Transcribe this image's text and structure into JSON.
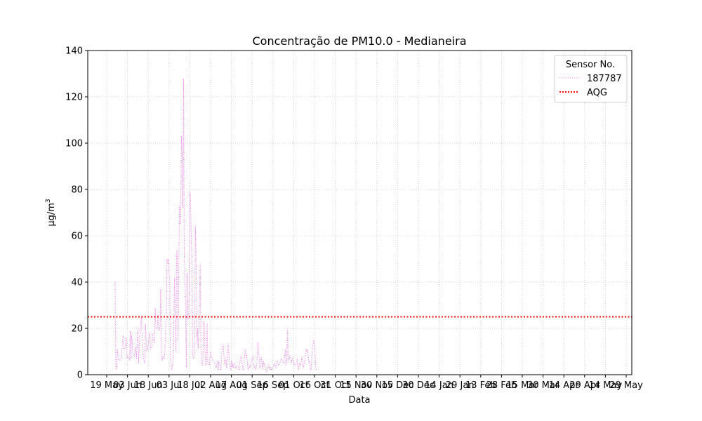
{
  "chart_data": {
    "type": "line",
    "title": "Concentração de PM10.0 - Medianeira",
    "xlabel": "Data",
    "ylabel": "µg/m",
    "ylabel_superscript": "3",
    "ylim": [
      0,
      140
    ],
    "yticks": [
      0,
      20,
      40,
      60,
      80,
      100,
      120,
      140
    ],
    "grid": true,
    "legend": {
      "title": "Sensor No.",
      "placement": "top-right"
    },
    "x_tick_labels": [
      "19 May",
      "03 Jun",
      "18 Jun",
      "03 Jul",
      "18 Jul",
      "02 Aug",
      "17 Aug",
      "01 Sep",
      "16 Sep",
      "01 Oct",
      "16 Oct",
      "31 Oct",
      "15 Nov",
      "30 Nov",
      "15 Dec",
      "30 Dec",
      "14 Jan",
      "29 Jan",
      "13 Feb",
      "28 Feb",
      "15 Mar",
      "30 Mar",
      "14 Apr",
      "29 Apr",
      "14 May",
      "29 May"
    ],
    "x_day_index_of_first_tick": 0,
    "tick_interval_days": 15,
    "series": [
      {
        "name": "187787",
        "color": "#ee82ee",
        "style": "dotted",
        "points": [
          [
            6,
            40
          ],
          [
            6.6,
            3
          ],
          [
            7.2,
            2
          ],
          [
            7.8,
            11
          ],
          [
            8.5,
            7
          ],
          [
            9.5,
            6
          ],
          [
            10.5,
            7
          ],
          [
            11.5,
            15
          ],
          [
            12,
            17
          ],
          [
            12.5,
            11
          ],
          [
            13.5,
            12
          ],
          [
            14,
            16
          ],
          [
            14.5,
            7
          ],
          [
            15.5,
            8
          ],
          [
            16.5,
            6
          ],
          [
            17,
            19
          ],
          [
            17.5,
            7
          ],
          [
            18,
            17
          ],
          [
            19,
            9
          ],
          [
            20,
            8
          ],
          [
            21,
            12
          ],
          [
            21.5,
            7
          ],
          [
            22.5,
            20
          ],
          [
            23,
            5
          ],
          [
            24,
            18
          ],
          [
            25,
            25
          ],
          [
            25.5,
            17
          ],
          [
            26.5,
            7
          ],
          [
            27.5,
            5
          ],
          [
            28,
            22
          ],
          [
            29,
            10
          ],
          [
            30,
            13
          ],
          [
            31,
            18
          ],
          [
            31.5,
            11
          ],
          [
            32.5,
            12
          ],
          [
            33,
            18
          ],
          [
            33.5,
            15
          ],
          [
            34.5,
            14
          ],
          [
            35,
            29
          ],
          [
            35.5,
            20
          ],
          [
            36.5,
            20
          ],
          [
            37,
            26
          ],
          [
            37.5,
            19
          ],
          [
            38.5,
            20
          ],
          [
            39,
            37
          ],
          [
            39.5,
            9
          ],
          [
            40,
            6
          ],
          [
            40.5,
            8
          ],
          [
            41.5,
            7
          ],
          [
            42,
            10
          ],
          [
            43,
            24
          ],
          [
            43.5,
            50
          ],
          [
            44,
            49
          ],
          [
            44.5,
            50
          ],
          [
            45,
            44
          ],
          [
            45.5,
            40
          ],
          [
            46,
            9
          ],
          [
            46.5,
            5
          ],
          [
            47,
            2
          ],
          [
            48,
            6
          ],
          [
            49,
            42
          ],
          [
            49.5,
            24
          ],
          [
            50,
            10
          ],
          [
            50.5,
            54
          ],
          [
            51,
            51
          ],
          [
            51.5,
            15
          ],
          [
            52,
            43
          ],
          [
            52.5,
            73
          ],
          [
            53,
            65
          ],
          [
            53.5,
            72
          ],
          [
            54,
            103
          ],
          [
            54.5,
            95
          ],
          [
            55,
            72
          ],
          [
            55.5,
            128
          ],
          [
            56,
            50
          ],
          [
            56.5,
            45
          ],
          [
            57,
            25
          ],
          [
            57.5,
            3
          ],
          [
            58,
            44
          ],
          [
            58.5,
            24
          ],
          [
            59,
            24
          ],
          [
            59.5,
            35
          ],
          [
            60,
            79
          ],
          [
            60.5,
            78
          ],
          [
            61,
            60
          ],
          [
            61.5,
            49
          ],
          [
            62,
            8
          ],
          [
            62.5,
            7
          ],
          [
            63,
            8
          ],
          [
            63.5,
            12
          ],
          [
            64,
            64
          ],
          [
            64.5,
            53
          ],
          [
            65,
            13
          ],
          [
            65.5,
            20
          ],
          [
            66,
            11
          ],
          [
            66.5,
            20
          ],
          [
            67,
            35
          ],
          [
            67.5,
            48
          ],
          [
            68,
            12
          ],
          [
            68.5,
            5
          ],
          [
            69,
            4
          ],
          [
            69.5,
            6
          ],
          [
            70,
            23
          ],
          [
            70.5,
            21
          ],
          [
            71,
            10
          ],
          [
            71.5,
            4
          ],
          [
            72,
            4
          ],
          [
            72.5,
            22
          ],
          [
            73,
            5
          ],
          [
            74,
            4
          ],
          [
            75,
            10
          ],
          [
            75.5,
            8
          ],
          [
            76,
            7
          ],
          [
            77,
            6
          ],
          [
            78,
            5
          ],
          [
            78.5,
            4
          ],
          [
            79,
            3
          ],
          [
            80,
            6
          ],
          [
            80.5,
            2
          ],
          [
            81,
            6
          ],
          [
            82,
            3
          ],
          [
            82.5,
            2
          ],
          [
            83,
            8
          ],
          [
            83.5,
            12
          ],
          [
            84,
            13
          ],
          [
            84.5,
            10
          ],
          [
            85,
            5
          ],
          [
            85.5,
            4
          ],
          [
            86,
            7
          ],
          [
            86.5,
            3
          ],
          [
            87,
            6
          ],
          [
            87.5,
            13
          ],
          [
            88,
            12
          ],
          [
            88.5,
            5
          ],
          [
            89,
            3
          ],
          [
            89.5,
            2
          ],
          [
            90,
            6
          ],
          [
            90.5,
            3
          ],
          [
            91,
            5
          ],
          [
            91.5,
            3
          ],
          [
            92,
            5
          ],
          [
            93,
            3
          ],
          [
            94,
            4
          ],
          [
            95,
            3
          ],
          [
            95.5,
            2
          ],
          [
            96,
            5
          ],
          [
            97,
            8
          ],
          [
            97.5,
            5
          ],
          [
            98,
            4
          ],
          [
            98.5,
            2
          ],
          [
            99,
            5
          ],
          [
            100,
            11
          ],
          [
            100.5,
            8
          ],
          [
            101,
            9
          ],
          [
            102,
            2
          ],
          [
            103,
            4
          ],
          [
            103.5,
            3
          ],
          [
            104,
            5
          ],
          [
            105,
            7
          ],
          [
            105.5,
            8
          ],
          [
            106,
            5
          ],
          [
            106.5,
            3
          ],
          [
            107,
            4
          ],
          [
            107.5,
            2
          ],
          [
            108,
            3
          ],
          [
            108.5,
            5
          ],
          [
            109,
            14
          ],
          [
            109.5,
            12
          ],
          [
            110,
            7
          ],
          [
            110.5,
            3
          ],
          [
            111,
            4
          ],
          [
            111.5,
            8
          ],
          [
            112,
            5
          ],
          [
            112.5,
            2
          ],
          [
            113,
            6
          ],
          [
            113.5,
            4
          ],
          [
            114,
            5
          ],
          [
            115,
            2
          ],
          [
            115.5,
            1
          ],
          [
            116,
            2
          ],
          [
            116.5,
            3
          ],
          [
            117,
            4
          ],
          [
            118,
            2
          ],
          [
            118.5,
            3
          ],
          [
            119,
            2
          ],
          [
            120,
            3
          ],
          [
            121,
            5
          ],
          [
            122,
            3
          ],
          [
            122.5,
            5
          ],
          [
            123,
            6
          ],
          [
            124,
            4
          ],
          [
            125,
            5
          ],
          [
            126,
            7
          ],
          [
            127,
            6
          ],
          [
            128,
            5
          ],
          [
            128.5,
            8
          ],
          [
            129,
            11
          ],
          [
            129.5,
            4
          ],
          [
            130,
            6
          ],
          [
            130.5,
            20
          ],
          [
            131,
            6
          ],
          [
            132,
            8
          ],
          [
            132.5,
            6
          ],
          [
            133,
            5
          ],
          [
            134,
            7
          ],
          [
            135,
            5
          ],
          [
            136,
            4
          ],
          [
            137,
            5
          ],
          [
            137.5,
            7
          ],
          [
            138,
            3
          ],
          [
            138.5,
            2
          ],
          [
            139,
            5
          ],
          [
            140,
            4
          ],
          [
            141,
            8
          ],
          [
            141.5,
            5
          ],
          [
            142,
            3
          ],
          [
            142.5,
            5
          ],
          [
            143,
            6
          ],
          [
            143.5,
            8
          ],
          [
            144,
            11
          ],
          [
            144.5,
            10
          ],
          [
            145,
            11
          ],
          [
            145.5,
            8
          ],
          [
            146,
            5
          ],
          [
            146.5,
            6
          ],
          [
            147,
            3
          ],
          [
            147.5,
            2
          ],
          [
            148,
            6
          ],
          [
            148.5,
            12
          ],
          [
            149,
            13
          ],
          [
            149.5,
            15
          ],
          [
            150,
            13
          ],
          [
            150.5,
            8
          ],
          [
            151,
            3
          ],
          [
            151.5,
            2
          ]
        ]
      },
      {
        "name": "AQG",
        "color": "#ff0000",
        "style": "dotted",
        "constant": 25
      }
    ]
  }
}
